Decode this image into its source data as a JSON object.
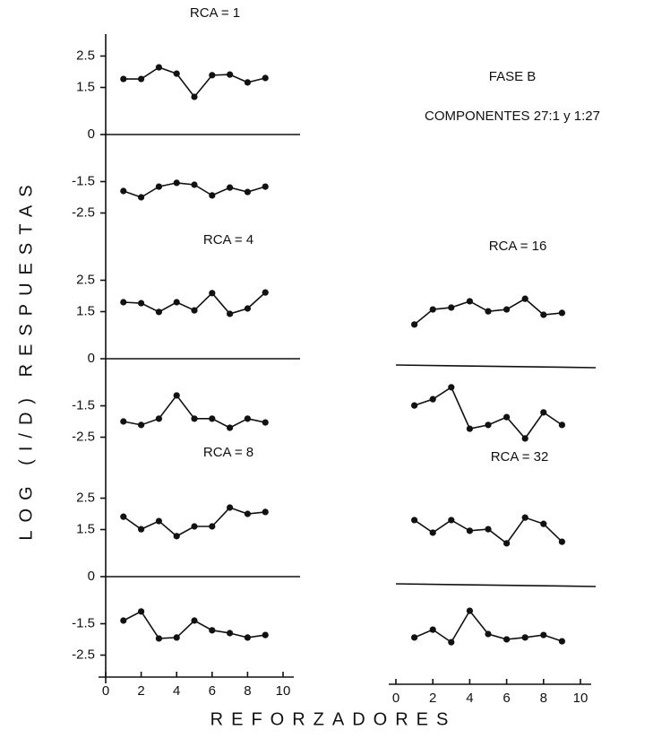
{
  "figure": {
    "title": "FASE B",
    "subtitle": "COMPONENTES 27:1 y 1:27",
    "ylabel": "LOG (I/D) RESPUESTAS",
    "xlabel": "REFORZADORES"
  },
  "chart_data": [
    {
      "type": "line",
      "title": "RCA = 1",
      "x": [
        1,
        2,
        3,
        4,
        5,
        6,
        7,
        8,
        9
      ],
      "series": [
        {
          "color": "#111",
          "values": [
            1.77,
            1.77,
            2.14,
            1.94,
            1.2,
            1.89,
            1.91,
            1.66,
            1.8
          ]
        },
        {
          "color": "#111",
          "values": [
            -1.8,
            -2.0,
            -1.66,
            -1.54,
            -1.6,
            -1.94,
            -1.69,
            -1.83,
            -1.66
          ]
        }
      ],
      "xlim": [
        0,
        10
      ],
      "ylim": [
        -2.8,
        2.8
      ],
      "yticks": [
        2.5,
        1.5,
        0,
        -1.5,
        -2.5
      ]
    },
    {
      "type": "line",
      "title": "RCA = 4",
      "x": [
        1,
        2,
        3,
        4,
        5,
        6,
        7,
        8,
        9
      ],
      "series": [
        {
          "color": "#111",
          "values": [
            1.8,
            1.77,
            1.49,
            1.8,
            1.54,
            2.09,
            1.43,
            1.6,
            2.11
          ]
        },
        {
          "color": "#111",
          "values": [
            -2.0,
            -2.11,
            -1.91,
            -1.17,
            -1.91,
            -1.91,
            -2.2,
            -1.91,
            -2.03
          ]
        }
      ],
      "xlim": [
        0,
        10
      ],
      "ylim": [
        -2.8,
        2.8
      ],
      "yticks": [
        2.5,
        1.5,
        0,
        -1.5,
        -2.5
      ]
    },
    {
      "type": "line",
      "title": "RCA = 8",
      "x": [
        1,
        2,
        3,
        4,
        5,
        6,
        7,
        8,
        9
      ],
      "series": [
        {
          "color": "#111",
          "values": [
            1.91,
            1.51,
            1.77,
            1.29,
            1.6,
            1.6,
            2.2,
            2.0,
            2.06
          ]
        },
        {
          "color": "#111",
          "values": [
            -1.4,
            -1.11,
            -1.97,
            -1.94,
            -1.4,
            -1.71,
            -1.8,
            -1.94,
            -1.86
          ]
        }
      ],
      "xlim": [
        0,
        10
      ],
      "ylim": [
        -2.8,
        2.8
      ],
      "yticks": [
        2.5,
        1.5,
        0,
        -1.5,
        -2.5
      ],
      "xticks": [
        0,
        2,
        4,
        6,
        8,
        10
      ]
    },
    {
      "type": "line",
      "title": "RCA = 16",
      "x": [
        1,
        2,
        3,
        4,
        5,
        6,
        7,
        8,
        9
      ],
      "series": [
        {
          "color": "#111",
          "values": [
            1.29,
            1.77,
            1.83,
            2.03,
            1.71,
            1.77,
            2.11,
            1.6,
            1.66
          ]
        },
        {
          "color": "#111",
          "values": [
            -1.29,
            -1.09,
            -0.71,
            -2.03,
            -1.91,
            -1.66,
            -2.34,
            -1.51,
            -1.91
          ]
        }
      ],
      "xlim": [
        0,
        10
      ],
      "ylim": [
        -2.8,
        2.8
      ]
    },
    {
      "type": "line",
      "title": "RCA = 32",
      "x": [
        1,
        2,
        3,
        4,
        5,
        6,
        7,
        8,
        9
      ],
      "series": [
        {
          "color": "#111",
          "values": [
            2.03,
            1.63,
            2.03,
            1.69,
            1.74,
            1.29,
            2.11,
            1.91,
            1.34
          ]
        },
        {
          "color": "#111",
          "values": [
            -1.71,
            -1.46,
            -1.86,
            -0.86,
            -1.6,
            -1.77,
            -1.71,
            -1.63,
            -1.83
          ]
        }
      ],
      "xlim": [
        0,
        10
      ],
      "ylim": [
        -2.8,
        2.8
      ],
      "xticks": [
        0,
        2,
        4,
        6,
        8,
        10
      ]
    }
  ]
}
